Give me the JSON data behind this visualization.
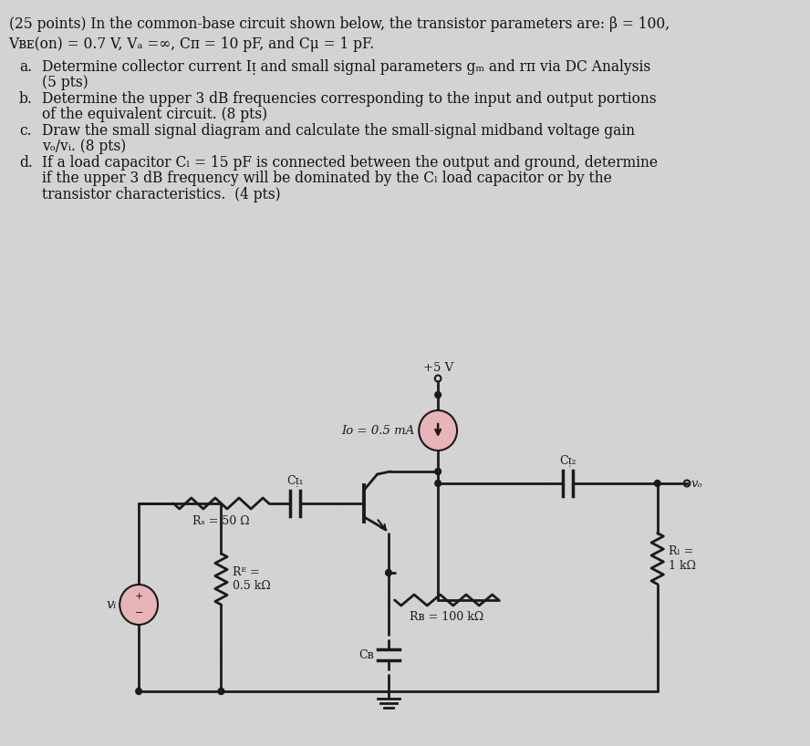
{
  "bg_color": "#d3d3d3",
  "text_color": "#111111",
  "circuit_color": "#1a1a1a",
  "vi_circle_color": "#e8b4b8",
  "iq_circle_color": "#e8b4b8",
  "title1": "(25 points) In the common-base circuit shown below, the transistor parameters are: β = 100,",
  "title2": "Vʙᴇ(on) = 0.7 V, Vₐ =∞, Cπ = 10 pF, and Cμ = 1 pF.",
  "items": [
    [
      "a.",
      "Determine collector current Iᴉ and small signal parameters gₘ and rπ via DC Analysis"
    ],
    [
      "",
      "(5 pts)"
    ],
    [
      "b.",
      "Determine the upper 3 dB frequencies corresponding to the input and output portions"
    ],
    [
      "",
      "of the equivalent circuit. (8 pts)"
    ],
    [
      "c.",
      "Draw the small signal diagram and calculate the small-signal midband voltage gain"
    ],
    [
      "",
      "vₒ/vᵢ. (8 pts)"
    ],
    [
      "d.",
      "If a load capacitor Cₗ = 15 pF is connected between the output and ground, determine"
    ],
    [
      "",
      "if the upper 3 dB frequency will be dominated by the Cₗ load capacitor or by the"
    ],
    [
      "",
      "transistor characteristics.  (4 pts)"
    ]
  ],
  "rs_label": "Rₛ = 50 Ω",
  "cc1_label": "Cᴉ₁",
  "re_label": "Rᴱ =\n0.5 kΩ",
  "iq_label": "Iᴏ = 0.5 mA",
  "vcc_label": "+5 V",
  "cc2_label": "Cᴉ₂",
  "rl_label": "Rₗ =\n1 kΩ",
  "rb_label": "Rʙ = 100 kΩ",
  "cb_label": "Cʙ",
  "vo_label": "vₒ",
  "vi_label": "vᵢ"
}
